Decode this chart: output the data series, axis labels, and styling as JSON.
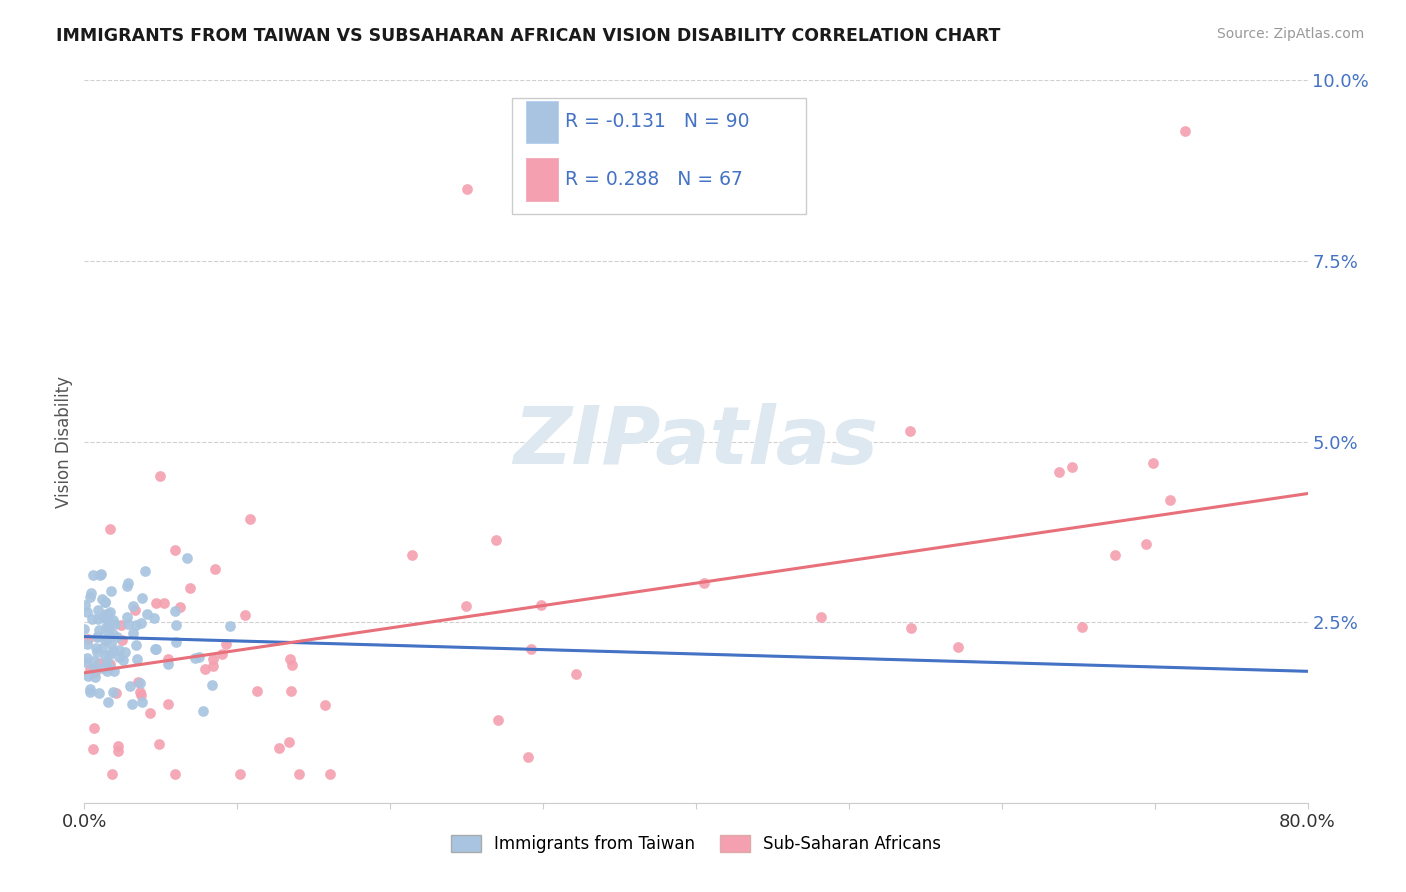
{
  "title": "IMMIGRANTS FROM TAIWAN VS SUBSAHARAN AFRICAN VISION DISABILITY CORRELATION CHART",
  "source": "Source: ZipAtlas.com",
  "ylabel": "Vision Disability",
  "xlim": [
    0.0,
    0.8
  ],
  "ylim": [
    0.0,
    0.1
  ],
  "yticks": [
    0.0,
    0.025,
    0.05,
    0.075,
    0.1
  ],
  "ytick_labels": [
    "",
    "2.5%",
    "5.0%",
    "7.5%",
    "10.0%"
  ],
  "xticks": [
    0.0,
    0.1,
    0.2,
    0.3,
    0.4,
    0.5,
    0.6,
    0.7,
    0.8
  ],
  "xtick_labels": [
    "0.0%",
    "",
    "",
    "",
    "",
    "",
    "",
    "",
    "80.0%"
  ],
  "taiwan_color": "#a8c4e0",
  "africa_color": "#f4a0b0",
  "taiwan_line_color": "#4472c4",
  "africa_line_color": "#e8707a",
  "background_color": "#ffffff",
  "title_color": "#1a1a1a",
  "legend_text_color": "#4472c4",
  "taiwan_line_slope": -0.006,
  "taiwan_line_intercept": 0.023,
  "africa_line_slope": 0.031,
  "africa_line_intercept": 0.018
}
